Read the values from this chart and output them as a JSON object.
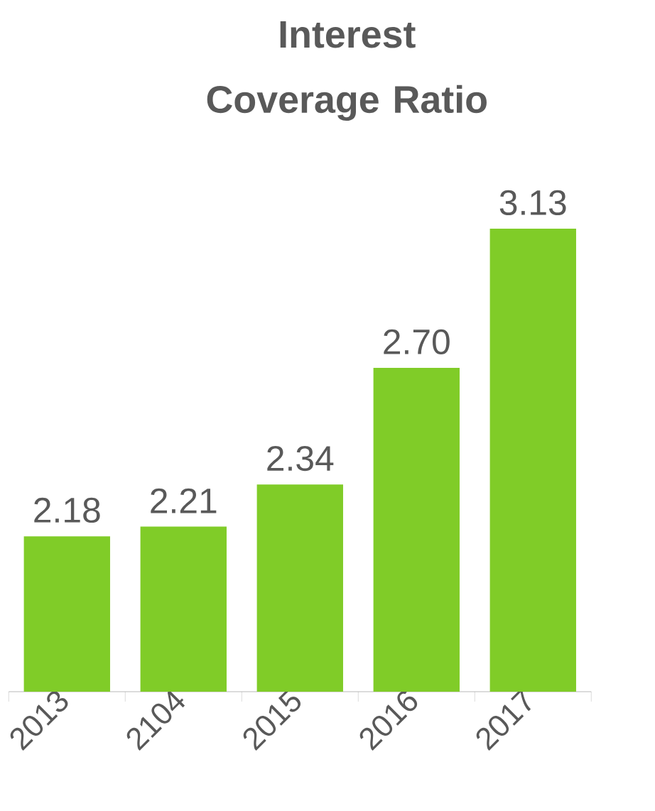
{
  "chart_data": {
    "type": "bar",
    "title": "Interest Coverage Ratio",
    "categories": [
      "2013",
      "2104",
      "2015",
      "2016",
      "2017"
    ],
    "values": [
      2.18,
      2.21,
      2.34,
      2.7,
      3.13
    ],
    "value_labels": [
      "2.18",
      "2.21",
      "2.34",
      "2.70",
      "3.13"
    ],
    "color": "#80cc28",
    "ylim": [
      1.7,
      3.13
    ]
  }
}
